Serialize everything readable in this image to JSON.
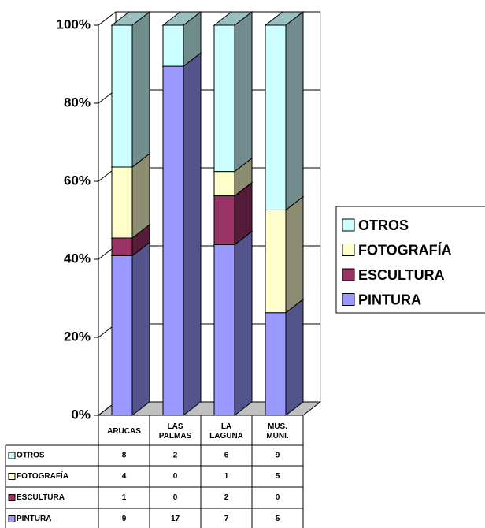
{
  "chart_data": {
    "type": "bar",
    "stacking": "percent",
    "categories": [
      "ARUCAS",
      "LAS PALMAS",
      "LA LAGUNA",
      "MUS. MUNI."
    ],
    "series": [
      {
        "name": "PINTURA",
        "color": "#9999ff",
        "values": [
          9,
          17,
          7,
          5
        ]
      },
      {
        "name": "ESCULTURA",
        "color": "#993366",
        "values": [
          1,
          0,
          2,
          0
        ]
      },
      {
        "name": "FOTOGRAFÍA",
        "color": "#ffffcc",
        "values": [
          4,
          0,
          1,
          5
        ]
      },
      {
        "name": "OTROS",
        "color": "#ccffff",
        "values": [
          8,
          2,
          6,
          9
        ]
      }
    ],
    "ylim": [
      0,
      100
    ],
    "yticks": [
      {
        "value": 0,
        "label": "0%"
      },
      {
        "value": 20,
        "label": "20%"
      },
      {
        "value": 40,
        "label": "40%"
      },
      {
        "value": 60,
        "label": "60%"
      },
      {
        "value": 80,
        "label": "80%"
      },
      {
        "value": 100,
        "label": "100%"
      }
    ],
    "grid": true,
    "legend": "right",
    "data_table": true
  }
}
